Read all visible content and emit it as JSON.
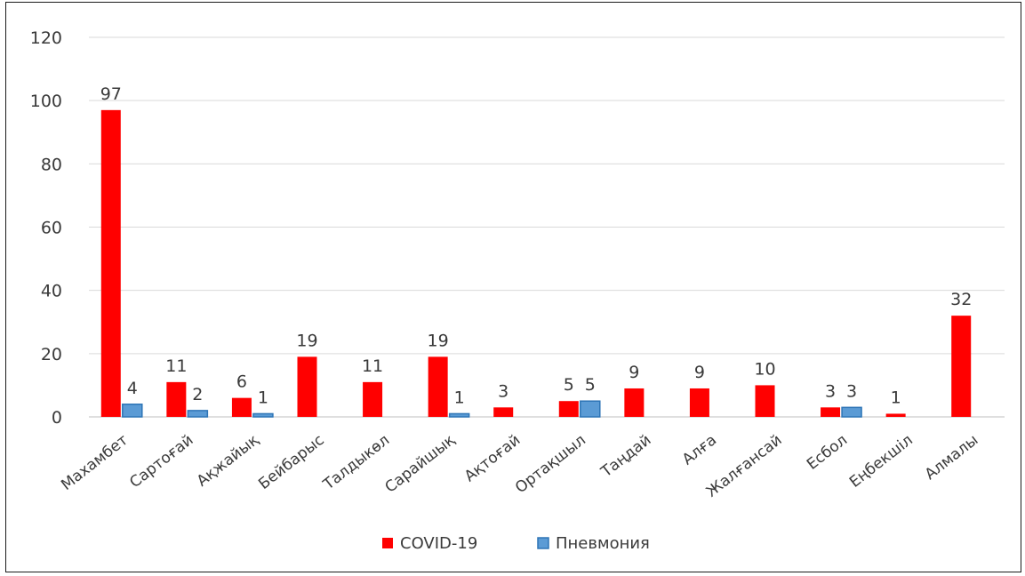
{
  "chart_data": {
    "type": "bar",
    "title": "",
    "xlabel": "",
    "ylabel": "",
    "ylim": [
      0,
      120
    ],
    "yticks": [
      0,
      20,
      40,
      60,
      80,
      100,
      120
    ],
    "grid": true,
    "legend_position": "bottom",
    "categories": [
      "Махамбет",
      "Сартоғай",
      "Ақжайық",
      "Бейбарыс",
      "Талдыкөл",
      "Сарайшық",
      "Ақтоғай",
      "Ортақшыл",
      "Таңдай",
      "Алға",
      "Жалғансай",
      "Есбол",
      "Еңбекшіл",
      "Алмалы"
    ],
    "series": [
      {
        "name": "COVID-19",
        "color": "#ff0000",
        "values": [
          97,
          11,
          6,
          19,
          11,
          19,
          3,
          5,
          9,
          9,
          10,
          3,
          1,
          32
        ]
      },
      {
        "name": "Пневмония",
        "color": "#5b9bd5",
        "values": [
          4,
          2,
          1,
          null,
          null,
          1,
          null,
          5,
          null,
          null,
          null,
          3,
          null,
          null
        ]
      }
    ]
  }
}
